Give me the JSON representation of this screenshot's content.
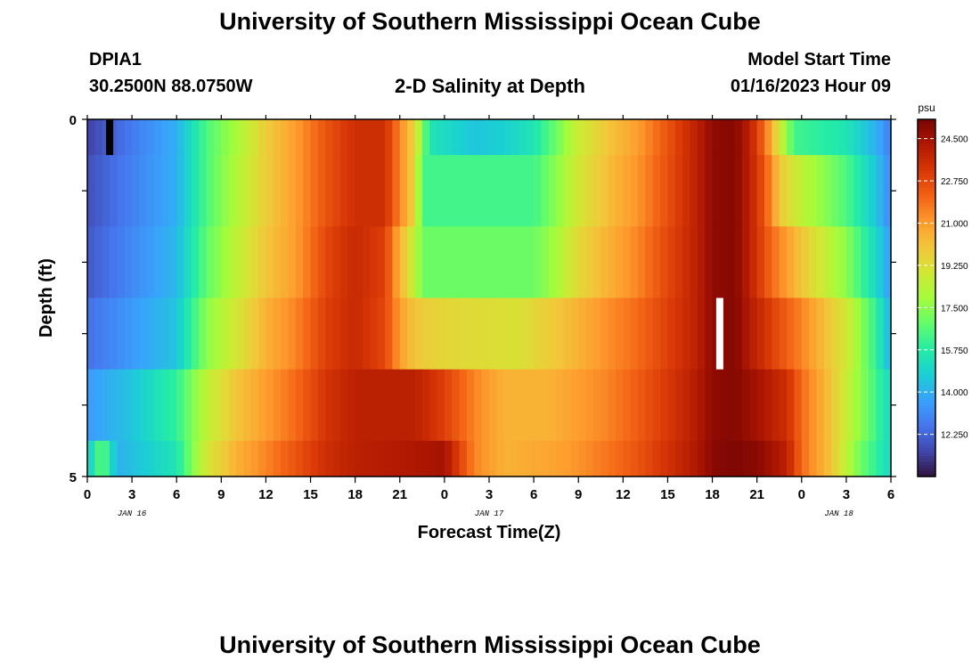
{
  "header": {
    "title": "University of Southern Mississippi Ocean Cube",
    "station_id": "DPIA1",
    "coordinates": "30.2500N  88.0750W",
    "chart_title": "2-D Salinity at Depth",
    "model_start_label": "Model Start Time",
    "model_start_value": "01/16/2023 Hour 09"
  },
  "footer": {
    "title": "University of Southern Mississippi Ocean Cube"
  },
  "chart_data": {
    "type": "heatmap",
    "title": "2-D Salinity at Depth",
    "xlabel": "Forecast Time(Z)",
    "ylabel": "Depth (ft)",
    "units": "psu",
    "y_ticks": [
      "0",
      "5"
    ],
    "y_range": [
      0,
      5
    ],
    "x_ticks": [
      "0",
      "3",
      "6",
      "9",
      "12",
      "15",
      "18",
      "21",
      "0",
      "3",
      "6",
      "9",
      "12",
      "15",
      "18",
      "21",
      "0",
      "3",
      "6"
    ],
    "date_labels": [
      {
        "label": "JAN 16",
        "hour": 15
      },
      {
        "label": "JAN 17",
        "hour": 39
      },
      {
        "label": "JAN 18",
        "hour": 63
      }
    ],
    "x_range_hours": [
      0,
      54
    ],
    "colorbar": {
      "range": [
        10.5,
        25.3
      ],
      "ticks": [
        "24.500",
        "22.750",
        "21.000",
        "19.250",
        "17.500",
        "15.750",
        "14.000",
        "12.250"
      ],
      "tick_values": [
        24.5,
        22.75,
        21.0,
        19.25,
        17.5,
        15.75,
        14.0,
        12.25
      ],
      "colors": [
        "#30123b",
        "#4145ab",
        "#4675ed",
        "#39a2fc",
        "#1bcfd4",
        "#24eca6",
        "#61fc6c",
        "#a4fc3b",
        "#d1e834",
        "#f3c63a",
        "#fe9b2d",
        "#f36315",
        "#d93806",
        "#b11901",
        "#7a0403"
      ]
    },
    "layers": [
      {
        "depth": "0.0-0.5",
        "profile": [
          [
            0,
            11.5
          ],
          [
            6,
            14.0
          ],
          [
            8,
            16.5
          ],
          [
            10,
            18.0
          ],
          [
            12,
            19.8
          ],
          [
            14,
            21.0
          ],
          [
            16,
            22.5
          ],
          [
            18,
            23.5
          ],
          [
            20,
            23.5
          ],
          [
            21,
            21.5
          ],
          [
            22,
            19.5
          ],
          [
            23,
            15.5
          ],
          [
            26,
            14.5
          ],
          [
            28,
            14.8
          ],
          [
            30,
            15.5
          ],
          [
            31.5,
            17.0
          ],
          [
            33,
            18.8
          ],
          [
            35,
            20.0
          ],
          [
            37,
            21.0
          ],
          [
            39,
            22.5
          ],
          [
            41,
            24.0
          ],
          [
            42,
            24.9
          ],
          [
            43.5,
            25.1
          ],
          [
            44.5,
            24.0
          ],
          [
            45.5,
            22.0
          ],
          [
            46.5,
            19.0
          ],
          [
            47.5,
            16.3
          ],
          [
            51,
            15.5
          ],
          [
            53,
            14.0
          ],
          [
            54,
            12.8
          ]
        ]
      },
      {
        "depth": "0.5-1.5",
        "profile": [
          [
            0,
            11.8
          ],
          [
            6,
            14.0
          ],
          [
            8,
            16.5
          ],
          [
            10,
            18.2
          ],
          [
            12,
            19.8
          ],
          [
            14,
            21.0
          ],
          [
            16,
            22.5
          ],
          [
            18,
            23.5
          ],
          [
            20,
            23.5
          ],
          [
            21,
            21.5
          ],
          [
            22,
            19.5
          ],
          [
            22.5,
            16.3
          ],
          [
            30,
            16.3
          ],
          [
            31.5,
            17.5
          ],
          [
            33,
            19.0
          ],
          [
            35,
            20.2
          ],
          [
            37,
            21.2
          ],
          [
            39,
            22.6
          ],
          [
            41,
            24.0
          ],
          [
            42,
            24.9
          ],
          [
            43.5,
            25.1
          ],
          [
            44.5,
            24.0
          ],
          [
            45.5,
            22.5
          ],
          [
            46.5,
            20.0
          ],
          [
            48,
            18.5
          ],
          [
            51,
            16.5
          ],
          [
            53,
            14.5
          ],
          [
            54,
            13.0
          ]
        ]
      },
      {
        "depth": "1.5-2.5",
        "profile": [
          [
            0,
            12.0
          ],
          [
            6,
            14.2
          ],
          [
            8,
            16.8
          ],
          [
            10,
            18.5
          ],
          [
            12,
            20.0
          ],
          [
            14,
            21.0
          ],
          [
            16,
            22.8
          ],
          [
            18,
            23.7
          ],
          [
            20,
            23.0
          ],
          [
            21,
            20.5
          ],
          [
            22,
            18.5
          ],
          [
            22.5,
            17.0
          ],
          [
            30,
            17.0
          ],
          [
            31.5,
            18.0
          ],
          [
            33,
            19.5
          ],
          [
            35,
            20.5
          ],
          [
            37,
            21.5
          ],
          [
            39,
            22.8
          ],
          [
            41,
            24.0
          ],
          [
            42,
            24.9
          ],
          [
            43.5,
            25.1
          ],
          [
            44.5,
            24.0
          ],
          [
            46,
            22.0
          ],
          [
            48,
            20.0
          ],
          [
            51,
            17.5
          ],
          [
            53,
            15.0
          ],
          [
            54,
            13.5
          ]
        ]
      },
      {
        "depth": "2.5-3.5",
        "profile": [
          [
            0,
            12.5
          ],
          [
            6,
            14.5
          ],
          [
            8,
            17.5
          ],
          [
            10,
            19.0
          ],
          [
            12,
            20.5
          ],
          [
            14,
            21.5
          ],
          [
            16,
            23.0
          ],
          [
            18,
            23.7
          ],
          [
            20,
            22.8
          ],
          [
            21,
            21.0
          ],
          [
            22,
            20.0
          ],
          [
            24,
            19.5
          ],
          [
            29,
            19.2
          ],
          [
            31,
            19.8
          ],
          [
            33,
            20.5
          ],
          [
            35,
            21.3
          ],
          [
            37,
            22.0
          ],
          [
            39,
            23.0
          ],
          [
            41,
            24.0
          ],
          [
            42,
            24.9
          ],
          [
            43.5,
            25.1
          ],
          [
            44.5,
            24.2
          ],
          [
            46,
            23.0
          ],
          [
            48,
            21.5
          ],
          [
            51,
            19.0
          ],
          [
            53,
            16.0
          ],
          [
            54,
            14.0
          ]
        ]
      },
      {
        "depth": "3.5-4.5",
        "profile": [
          [
            0,
            13.5
          ],
          [
            3,
            14.5
          ],
          [
            6,
            16.0
          ],
          [
            8,
            18.5
          ],
          [
            10,
            20.0
          ],
          [
            12,
            21.0
          ],
          [
            14,
            22.0
          ],
          [
            16,
            23.3
          ],
          [
            18,
            24.0
          ],
          [
            22,
            24.0
          ],
          [
            24,
            23.0
          ],
          [
            26,
            21.5
          ],
          [
            28,
            20.5
          ],
          [
            31,
            20.5
          ],
          [
            33,
            21.0
          ],
          [
            35,
            21.5
          ],
          [
            37,
            22.3
          ],
          [
            39,
            23.2
          ],
          [
            41,
            24.2
          ],
          [
            42,
            24.9
          ],
          [
            43.5,
            25.1
          ],
          [
            45,
            24.5
          ],
          [
            47,
            23.5
          ],
          [
            48,
            22.0
          ],
          [
            50,
            20.0
          ],
          [
            52,
            17.5
          ],
          [
            54,
            15.0
          ]
        ]
      },
      {
        "depth": "4.5-5.0",
        "profile": [
          [
            0,
            14.5
          ],
          [
            1,
            17.0
          ],
          [
            2,
            14.0
          ],
          [
            6,
            15.5
          ],
          [
            8,
            19.0
          ],
          [
            10,
            20.5
          ],
          [
            12,
            21.5
          ],
          [
            14,
            22.5
          ],
          [
            16,
            23.5
          ],
          [
            18,
            24.0
          ],
          [
            22,
            24.3
          ],
          [
            24,
            24.5
          ],
          [
            25,
            23.0
          ],
          [
            26,
            21.5
          ],
          [
            28,
            20.5
          ],
          [
            31,
            20.8
          ],
          [
            33,
            21.2
          ],
          [
            35,
            21.8
          ],
          [
            37,
            22.5
          ],
          [
            39,
            23.4
          ],
          [
            41,
            24.3
          ],
          [
            42,
            25.0
          ],
          [
            43.5,
            25.2
          ],
          [
            45,
            25.0
          ],
          [
            47,
            24.0
          ],
          [
            48,
            22.0
          ],
          [
            50,
            20.0
          ],
          [
            52,
            17.0
          ],
          [
            54,
            15.0
          ]
        ]
      }
    ],
    "markers": [
      {
        "type": "missing-data",
        "color": "#000000",
        "hour": 1.5,
        "depth": [
          0,
          0.5
        ]
      },
      {
        "type": "missing-data",
        "color": "#ffffff",
        "hour": 42.5,
        "depth": [
          2.5,
          3.5
        ]
      }
    ]
  }
}
